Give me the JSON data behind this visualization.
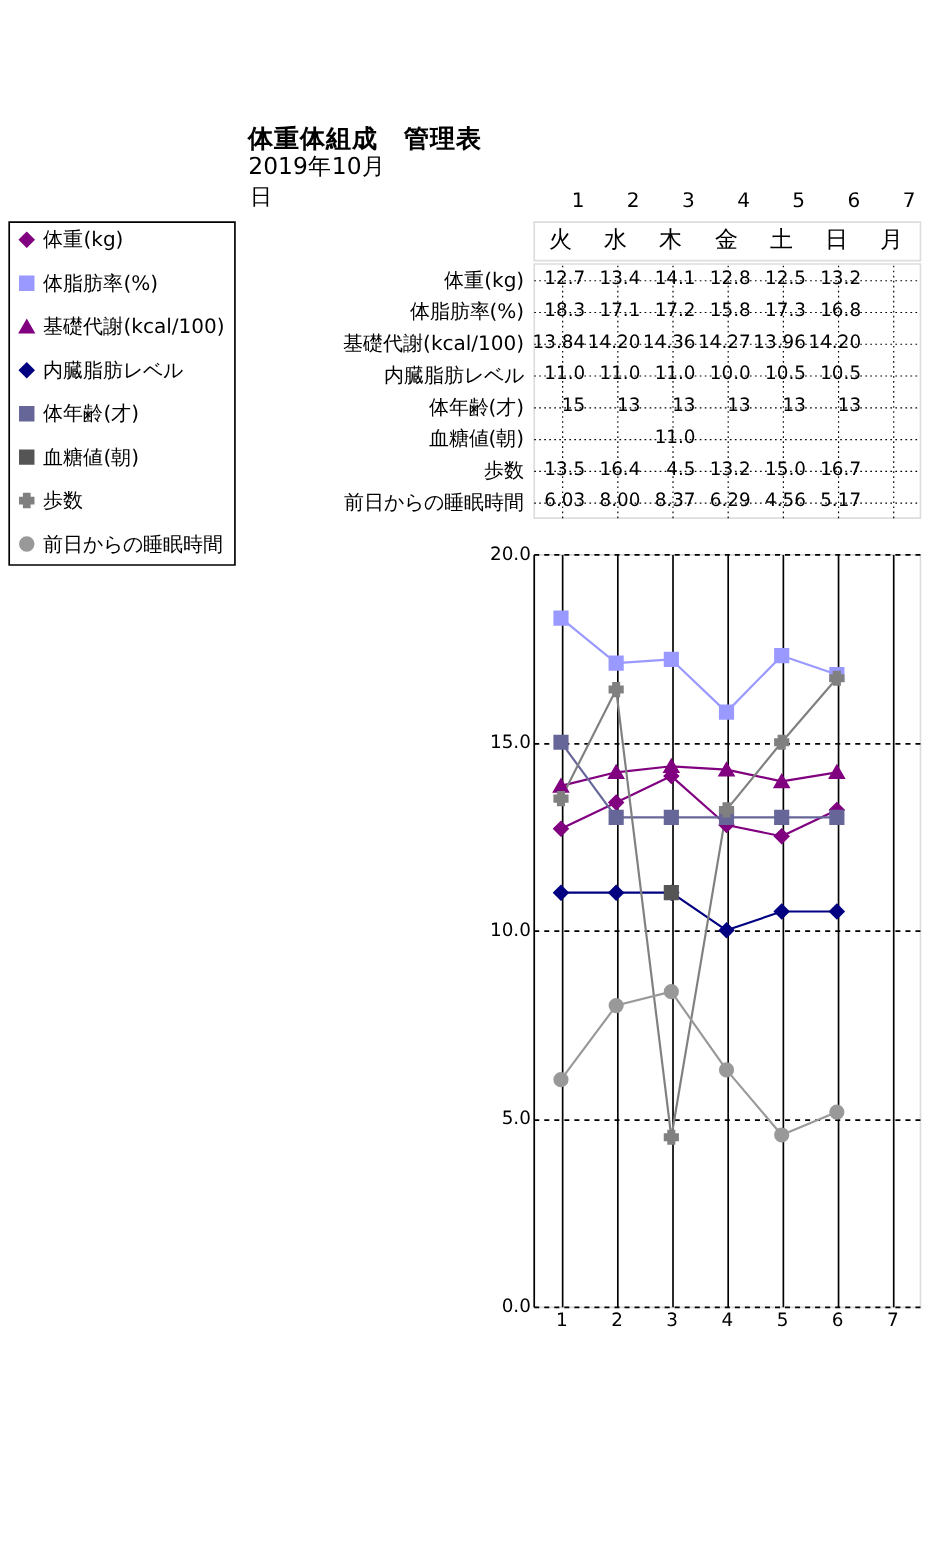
{
  "chart_data": [
    {
      "type": "heatmap",
      "title": "体重体組成　管理表",
      "subtitle": "2019年10月",
      "xlabel": "日",
      "categories": [
        "1",
        "2",
        "3",
        "4",
        "5",
        "6",
        "7"
      ],
      "grid": true,
      "annotations": [
        "火",
        "水",
        "木",
        "金",
        "土",
        "日",
        "月"
      ],
      "y_categories": [
        "体重(kg)",
        "体脂肪率(%)",
        "基礎代謝(kcal/100)",
        "内臓脂肪レベル",
        "体年齢(才)",
        "血糖値(朝)",
        "歩数",
        "前日からの睡眠時間"
      ],
      "cells": [
        [
          12.7,
          13.4,
          14.1,
          12.8,
          12.5,
          13.2,
          null
        ],
        [
          18.3,
          17.1,
          17.2,
          15.8,
          17.3,
          16.8,
          null
        ],
        [
          13.84,
          14.2,
          14.36,
          14.27,
          13.96,
          14.2,
          null
        ],
        [
          11.0,
          11.0,
          11.0,
          10.0,
          10.5,
          10.5,
          null
        ],
        [
          15,
          13,
          13,
          13,
          13,
          13,
          null
        ],
        [
          null,
          null,
          11.0,
          null,
          null,
          null,
          null
        ],
        [
          13.5,
          16.4,
          4.5,
          13.2,
          15.0,
          16.7,
          null
        ],
        [
          6.03,
          8.0,
          8.37,
          6.29,
          4.56,
          5.17,
          null
        ]
      ],
      "cell_labels": [
        [
          "12.7",
          "13.4",
          "14.1",
          "12.8",
          "12.5",
          "13.2",
          null
        ],
        [
          "18.3",
          "17.1",
          "17.2",
          "15.8",
          "17.3",
          "16.8",
          null
        ],
        [
          "13.84",
          "14.20",
          "14.36",
          "14.27",
          "13.96",
          "14.20",
          null
        ],
        [
          "11.0",
          "11.0",
          "11.0",
          "10.0",
          "10.5",
          "10.5",
          null
        ],
        [
          "15",
          "13",
          "13",
          "13",
          "13",
          "13",
          null
        ],
        [
          null,
          null,
          "11.0",
          null,
          null,
          null,
          null
        ],
        [
          "13.5",
          "16.4",
          "4.5",
          "13.2",
          "15.0",
          "16.7",
          null
        ],
        [
          "6.03",
          "8.00",
          "8.37",
          "6.29",
          "4.56",
          "5.17",
          null
        ]
      ]
    },
    {
      "type": "line",
      "categories": [
        "1",
        "2",
        "3",
        "4",
        "5",
        "6",
        "7"
      ],
      "series": [
        {
          "name": "体重(kg)",
          "color": "#800080",
          "marker": "diamond",
          "values": [
            12.7,
            13.4,
            14.1,
            12.8,
            12.5,
            13.2,
            null
          ]
        },
        {
          "name": "体脂肪率(%)",
          "color": "#9999ff",
          "marker": "square",
          "values": [
            18.3,
            17.1,
            17.2,
            15.8,
            17.3,
            16.8,
            null
          ]
        },
        {
          "name": "基礎代謝(kcal/100)",
          "color": "#800080",
          "marker": "triangle",
          "values": [
            13.84,
            14.2,
            14.36,
            14.27,
            13.96,
            14.2,
            null
          ]
        },
        {
          "name": "内臓脂肪レベル",
          "color": "#000080",
          "marker": "diamond",
          "values": [
            11.0,
            11.0,
            11.0,
            10.0,
            10.5,
            10.5,
            null
          ]
        },
        {
          "name": "体年齢(才)",
          "color": "#666699",
          "marker": "square",
          "values": [
            15,
            13,
            13,
            13,
            13,
            13,
            null
          ]
        },
        {
          "name": "血糖値(朝)",
          "color": "#555555",
          "marker": "square",
          "values": [
            null,
            null,
            11.0,
            null,
            null,
            null,
            null
          ]
        },
        {
          "name": "歩数",
          "color": "#808080",
          "marker": "cross",
          "values": [
            13.5,
            16.4,
            4.5,
            13.2,
            15.0,
            16.7,
            null
          ]
        },
        {
          "name": "前日からの睡眠時間",
          "color": "#999999",
          "marker": "circle",
          "values": [
            6.03,
            8.0,
            8.37,
            6.29,
            4.56,
            5.17,
            null
          ]
        }
      ],
      "ylim": [
        0,
        20
      ],
      "yticks": [
        {
          "value": 0,
          "label": "0.0"
        },
        {
          "value": 5,
          "label": "5.0"
        },
        {
          "value": 10,
          "label": "10.0"
        },
        {
          "value": 15,
          "label": "15.0"
        },
        {
          "value": 20,
          "label": "20.0"
        }
      ],
      "grid": true,
      "legend": "left",
      "line_style": "solid"
    }
  ]
}
